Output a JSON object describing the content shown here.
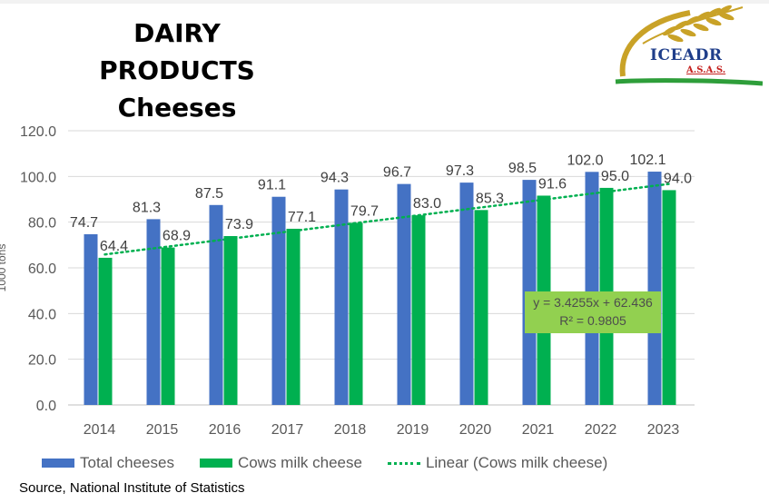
{
  "header": {
    "title_line1": "DAIRY",
    "title_line2": "PRODUCTS",
    "title_line3": "Cheeses"
  },
  "logo": {
    "name": "ICEADR",
    "subtitle": "A.S.A.S."
  },
  "source": "Source, National Institute of Statistics",
  "colors": {
    "total": "#4472c4",
    "cows": "#00b050",
    "trend": "#00b050",
    "trend_box": "#92d050"
  },
  "chart_data": {
    "type": "bar",
    "ylabel": "1000 tons",
    "xlabel": "",
    "ylim": [
      0,
      120
    ],
    "yticks": [
      "0.0",
      "20.0",
      "40.0",
      "60.0",
      "80.0",
      "100.0",
      "120.0"
    ],
    "grid": true,
    "legend_position": "bottom",
    "categories": [
      "2014",
      "2015",
      "2016",
      "2017",
      "2018",
      "2019",
      "2020",
      "2021",
      "2022",
      "2023"
    ],
    "series": [
      {
        "name": "Total cheeses",
        "values": [
          74.7,
          81.3,
          87.5,
          91.1,
          94.3,
          96.7,
          97.3,
          98.5,
          102.0,
          102.1
        ],
        "labels": [
          "74.7",
          "81.3",
          "87.5",
          "91.1",
          "94.3",
          "96.7",
          "97.3",
          "98.5",
          "102.0",
          "102.1"
        ]
      },
      {
        "name": "Cows milk cheese",
        "values": [
          64.4,
          68.9,
          73.9,
          77.1,
          79.7,
          83.0,
          85.3,
          91.6,
          95.0,
          94.0
        ],
        "labels": [
          "64.4",
          "68.9",
          "73.9",
          "77.1",
          "79.7",
          "83.0",
          "85.3",
          "91.6",
          "95.0",
          "94.0"
        ]
      }
    ],
    "trendline": {
      "name": "Linear (Cows milk cheese)",
      "slope": 3.4255,
      "intercept": 62.436,
      "equation": "y = 3.4255x + 62.436",
      "r_squared": "R² = 0.9805"
    }
  }
}
